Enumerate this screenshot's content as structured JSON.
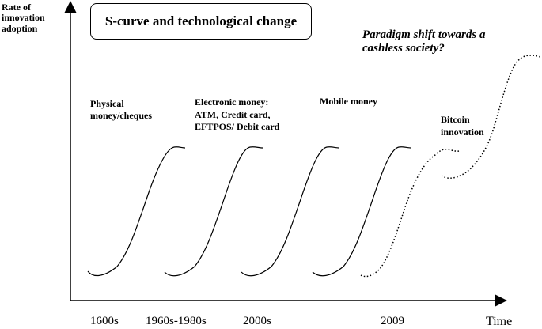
{
  "title": "S-curve and technological change",
  "y_axis_label": [
    "Rate of",
    "innovation",
    "adoption"
  ],
  "x_axis_label": "Time",
  "x_ticks": [
    "1600s",
    "1960s-1980s",
    "2000s",
    "2009"
  ],
  "paradigm_label": [
    "Paradigm shift towards a",
    "cashless society?"
  ],
  "stages": [
    {
      "label": [
        "Physical",
        "money/cheques"
      ],
      "style": "solid"
    },
    {
      "label": [
        "Electronic money:",
        "ATM, Credit card,",
        "EFTPOS/ Debit card"
      ],
      "style": "solid"
    },
    {
      "label": [
        "Mobile money"
      ],
      "style": "solid"
    },
    {
      "label": [],
      "style": "solid"
    },
    {
      "label": [
        "Bitcoin",
        "innovation"
      ],
      "style": "dotted"
    },
    {
      "label": [],
      "style": "dotted"
    }
  ],
  "colors": {
    "ink": "#000000",
    "background": "#ffffff"
  }
}
